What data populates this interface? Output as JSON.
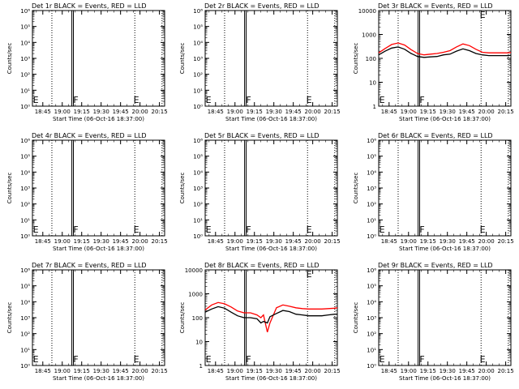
{
  "chart_data": [
    {
      "type": "line",
      "title": "Det 1r BLACK = Events, RED = LLD",
      "xlabel": "Start Time (06-Oct-16 18:37:00)",
      "ylabel": "Counts/sec",
      "yticks": [
        "10⁰",
        "10¹",
        "10²",
        "10³",
        "10⁴",
        "10⁵",
        "10⁶"
      ],
      "xticks": [
        "18:45",
        "19:00",
        "19:15",
        "19:30",
        "19:45",
        "20:00",
        "20:15"
      ],
      "markers": [
        "E",
        "F",
        "E"
      ],
      "series": []
    },
    {
      "type": "line",
      "title": "Det 2r BLACK = Events, RED = LLD",
      "xlabel": "Start Time (06-Oct-16 18:37:00)",
      "ylabel": "Counts/sec",
      "yticks": [
        "10⁰",
        "10¹",
        "10²",
        "10³",
        "10⁴",
        "10⁵",
        "10⁶"
      ],
      "xticks": [
        "18:45",
        "19:00",
        "19:15",
        "19:30",
        "19:45",
        "20:00",
        "20:15"
      ],
      "markers": [
        "E",
        "F",
        "E"
      ],
      "series": []
    },
    {
      "type": "line",
      "title": "Det 3r BLACK = Events, RED = LLD",
      "xlabel": "Start Time (06-Oct-16 18:37:00)",
      "ylabel": "Counts/sec",
      "yticks": [
        "1",
        "10",
        "100",
        "1000",
        "10000"
      ],
      "xticks": [
        "18:45",
        "19:00",
        "19:15",
        "19:30",
        "19:45",
        "20:00",
        "20:15"
      ],
      "markers": [
        "E",
        "F",
        "E"
      ],
      "x": [
        "18:37",
        "18:42",
        "18:47",
        "18:52",
        "18:57",
        "19:02",
        "19:07",
        "19:12",
        "19:17",
        "19:22",
        "19:27",
        "19:32",
        "19:37",
        "19:42",
        "19:47",
        "19:52",
        "19:57",
        "20:02",
        "20:07",
        "20:12",
        "20:17",
        "20:19"
      ],
      "series": [
        {
          "name": "Events",
          "values": [
            140,
            200,
            270,
            300,
            240,
            160,
            120,
            110,
            115,
            120,
            140,
            150,
            200,
            250,
            210,
            160,
            140,
            130,
            130,
            130,
            130,
            135
          ]
        },
        {
          "name": "LLD",
          "values": [
            170,
            260,
            380,
            440,
            360,
            230,
            160,
            140,
            150,
            160,
            180,
            210,
            300,
            400,
            340,
            240,
            180,
            170,
            170,
            170,
            170,
            175
          ]
        }
      ]
    },
    {
      "type": "line",
      "title": "Det 4r BLACK = Events, RED = LLD",
      "xlabel": "Start Time (06-Oct-16 18:37:00)",
      "ylabel": "Counts/sec",
      "yticks": [
        "10⁰",
        "10¹",
        "10²",
        "10³",
        "10⁴",
        "10⁵",
        "10⁶"
      ],
      "xticks": [
        "18:45",
        "19:00",
        "19:15",
        "19:30",
        "19:45",
        "20:00",
        "20:15"
      ],
      "markers": [
        "E",
        "F",
        "E"
      ],
      "series": []
    },
    {
      "type": "line",
      "title": "Det 5r BLACK = Events, RED = LLD",
      "xlabel": "Start Time (06-Oct-16 18:37:00)",
      "ylabel": "Counts/sec",
      "yticks": [
        "10⁰",
        "10¹",
        "10²",
        "10³",
        "10⁴",
        "10⁵",
        "10⁶"
      ],
      "xticks": [
        "18:45",
        "19:00",
        "19:15",
        "19:30",
        "19:45",
        "20:00",
        "20:15"
      ],
      "markers": [
        "E",
        "F",
        "E"
      ],
      "series": []
    },
    {
      "type": "line",
      "title": "Det 6r BLACK = Events, RED = LLD",
      "xlabel": "Start Time (06-Oct-16 18:37:00)",
      "ylabel": "Counts/sec",
      "yticks": [
        "10⁰",
        "10¹",
        "10²",
        "10³",
        "10⁴",
        "10⁵",
        "10⁶"
      ],
      "xticks": [
        "18:45",
        "19:00",
        "19:15",
        "19:30",
        "19:45",
        "20:00",
        "20:15"
      ],
      "markers": [
        "E",
        "F",
        "E"
      ],
      "series": []
    },
    {
      "type": "line",
      "title": "Det 7r BLACK = Events, RED = LLD",
      "xlabel": "Start Time (06-Oct-16 18:37:00)",
      "ylabel": "Counts/sec",
      "yticks": [
        "10⁰",
        "10¹",
        "10²",
        "10³",
        "10⁴",
        "10⁵",
        "10⁶"
      ],
      "xticks": [
        "18:45",
        "19:00",
        "19:15",
        "19:30",
        "19:45",
        "20:00",
        "20:15"
      ],
      "markers": [
        "E",
        "F",
        "E"
      ],
      "series": []
    },
    {
      "type": "line",
      "title": "Det 8r BLACK = Events, RED = LLD",
      "xlabel": "Start Time (06-Oct-16 18:37:00)",
      "ylabel": "Counts/sec",
      "yticks": [
        "1",
        "10",
        "100",
        "1000",
        "10000"
      ],
      "xticks": [
        "18:45",
        "19:00",
        "19:15",
        "19:30",
        "19:45",
        "20:00",
        "20:15"
      ],
      "markers": [
        "E",
        "F",
        "E"
      ],
      "x": [
        "18:37",
        "18:42",
        "18:47",
        "18:52",
        "18:57",
        "19:02",
        "19:07",
        "19:12",
        "19:17",
        "19:20",
        "19:22",
        "19:25",
        "19:27",
        "19:32",
        "19:37",
        "19:42",
        "19:47",
        "19:52",
        "19:57",
        "20:02",
        "20:07",
        "20:12",
        "20:17",
        "20:19"
      ],
      "series": [
        {
          "name": "Events",
          "values": [
            170,
            230,
            290,
            250,
            170,
            120,
            100,
            100,
            90,
            60,
            70,
            60,
            110,
            150,
            200,
            180,
            140,
            130,
            120,
            120,
            120,
            130,
            140,
            140
          ]
        },
        {
          "name": "LLD",
          "values": [
            210,
            340,
            430,
            380,
            280,
            190,
            160,
            160,
            130,
            100,
            130,
            25,
            60,
            260,
            340,
            300,
            260,
            240,
            230,
            230,
            230,
            240,
            250,
            260
          ]
        }
      ]
    },
    {
      "type": "line",
      "title": "Det 9r BLACK = Events, RED = LLD",
      "xlabel": "Start Time (06-Oct-16 18:37:00)",
      "ylabel": "Counts/sec",
      "yticks": [
        "10⁰",
        "10¹",
        "10²",
        "10³",
        "10⁴",
        "10⁵",
        "10⁶"
      ],
      "xticks": [
        "18:45",
        "19:00",
        "19:15",
        "19:30",
        "19:45",
        "20:00",
        "20:15"
      ],
      "markers": [
        "E",
        "F",
        "E"
      ],
      "series": []
    }
  ],
  "colors": {
    "events": "#000000",
    "lld": "#ff0000"
  }
}
